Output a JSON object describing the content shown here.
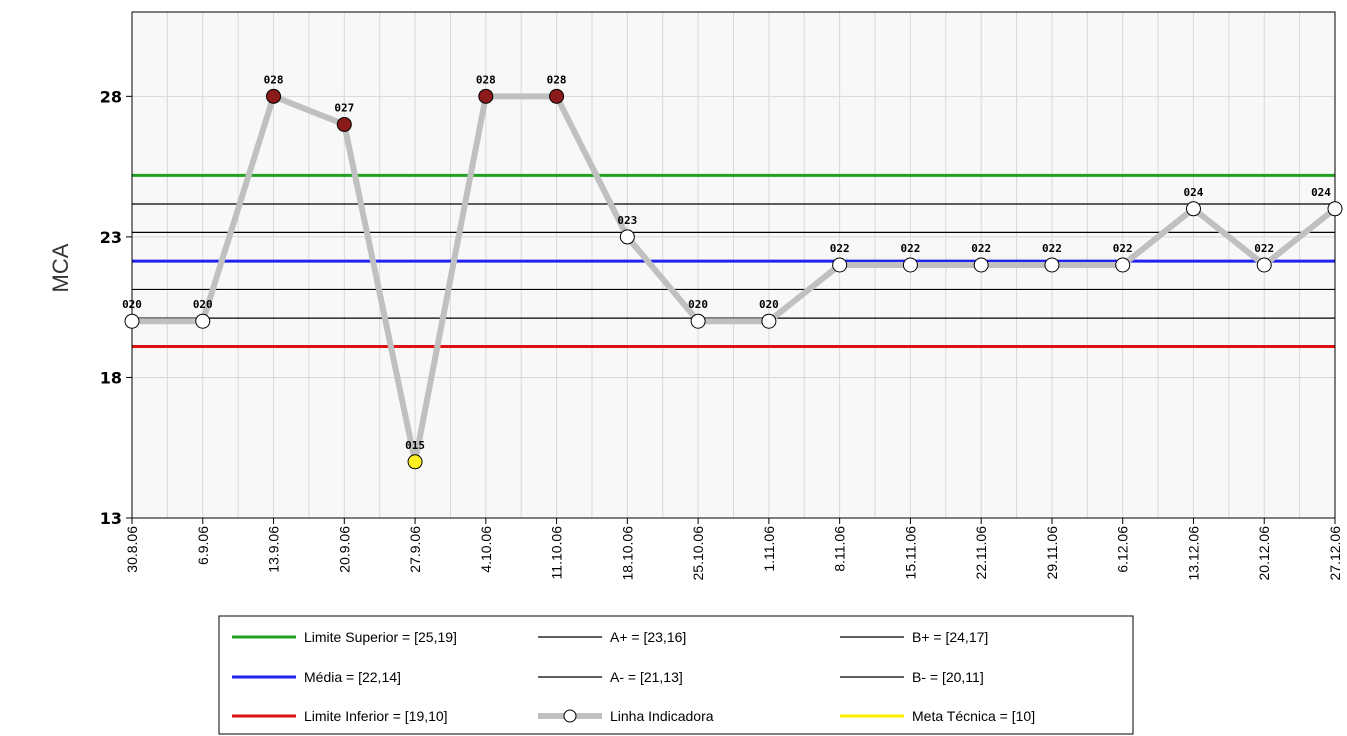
{
  "chart_data": {
    "type": "line",
    "title": "",
    "xlabel": "",
    "ylabel": "MCA",
    "ylim": [
      13,
      31
    ],
    "y_ticks": [
      "13",
      "18",
      "23",
      "28"
    ],
    "grid": true,
    "legend_placement": "bottom",
    "categories": [
      "30.8.06",
      "6.9.06",
      "13.9.06",
      "20.9.06",
      "27.9.06",
      "4.10.06",
      "11.10.06",
      "18.10.06",
      "25.10.06",
      "1.11.06",
      "8.11.06",
      "15.11.06",
      "22.11.06",
      "29.11.06",
      "6.12.06",
      "13.12.06",
      "20.12.06",
      "27.12.06"
    ],
    "series": [
      {
        "name": "Linha Indicadora",
        "values": [
          20,
          20,
          28,
          27,
          15,
          28,
          28,
          23,
          20,
          20,
          22,
          22,
          22,
          22,
          22,
          24,
          22,
          24
        ],
        "point_labels": [
          "020",
          "020",
          "028",
          "027",
          "015",
          "028",
          "028",
          "023",
          "020",
          "020",
          "022",
          "022",
          "022",
          "022",
          "022",
          "024",
          "022",
          "024"
        ],
        "point_colors": [
          "#ffffff",
          "#ffffff",
          "#8b1a1a",
          "#8b1a1a",
          "#ffee22",
          "#8b1a1a",
          "#8b1a1a",
          "#ffffff",
          "#ffffff",
          "#ffffff",
          "#ffffff",
          "#ffffff",
          "#ffffff",
          "#ffffff",
          "#ffffff",
          "#ffffff",
          "#ffffff",
          "#ffffff"
        ],
        "color": "#c0c0c0"
      }
    ],
    "reference_lines": [
      {
        "key": "limite_superior",
        "value": 25.19,
        "color": "#22a022"
      },
      {
        "key": "b_plus",
        "value": 24.17,
        "color": "#000000"
      },
      {
        "key": "a_plus",
        "value": 23.16,
        "color": "#000000"
      },
      {
        "key": "media",
        "value": 22.14,
        "color": "#2222ee"
      },
      {
        "key": "a_minus",
        "value": 21.13,
        "color": "#000000"
      },
      {
        "key": "b_minus",
        "value": 20.11,
        "color": "#000000"
      },
      {
        "key": "limite_inferior",
        "value": 19.1,
        "color": "#dd1111"
      }
    ]
  },
  "legend": {
    "items": [
      {
        "label": "Limite Superior = [25,19]",
        "color": "#22a022",
        "style": "line"
      },
      {
        "label": "A+ = [23,16]",
        "color": "#000000",
        "style": "thin"
      },
      {
        "label": "B+ = [24,17]",
        "color": "#000000",
        "style": "thin"
      },
      {
        "label": "Média = [22,14]",
        "color": "#2222ee",
        "style": "line"
      },
      {
        "label": "A- = [21,13]",
        "color": "#000000",
        "style": "thin"
      },
      {
        "label": "B- = [20,11]",
        "color": "#000000",
        "style": "thin"
      },
      {
        "label": "Limite Inferior = [19,10]",
        "color": "#dd1111",
        "style": "line"
      },
      {
        "label": "Linha Indicadora",
        "color": "#c0c0c0",
        "style": "marker"
      },
      {
        "label": "Meta Técnica = [10]",
        "color": "#ffee00",
        "style": "line"
      }
    ]
  },
  "colors": {
    "plot_background": "#f8f8f8",
    "grid": "#d8d8d8"
  }
}
